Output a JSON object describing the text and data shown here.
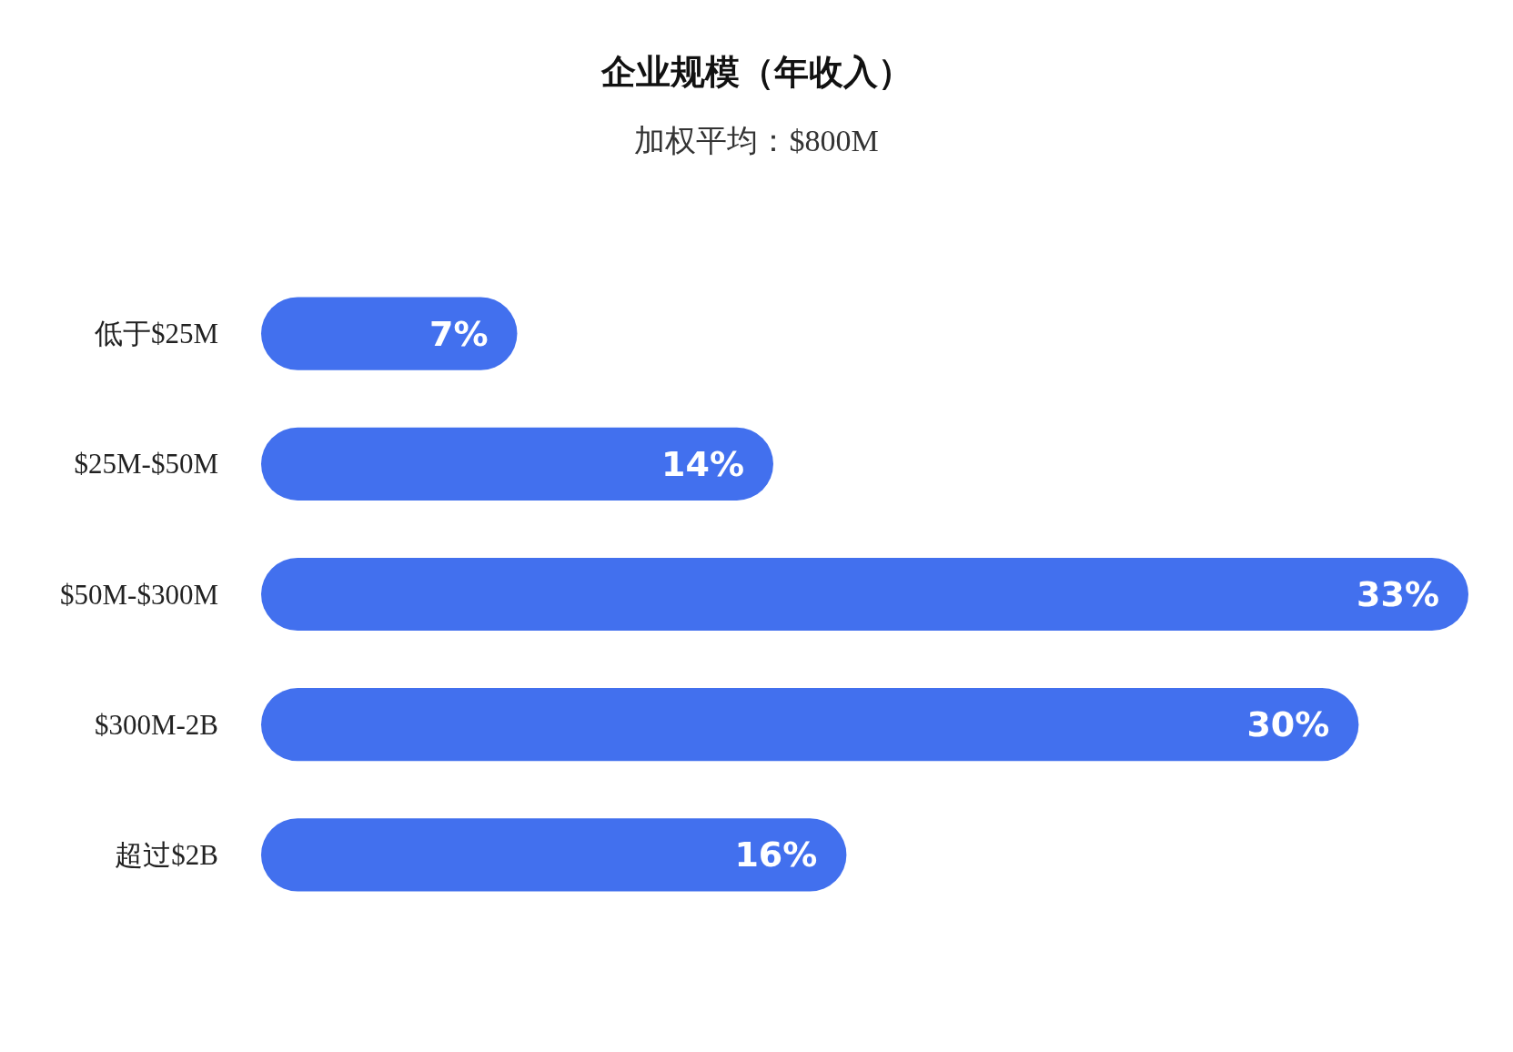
{
  "chart_data": {
    "type": "bar",
    "orientation": "horizontal",
    "title": "企业规模（年收入）",
    "subtitle": "加权平均：$800M",
    "categories": [
      "低于$25M",
      "$25M-$50M",
      "$50M-$300M",
      "$300M-2B",
      "超过$2B"
    ],
    "values": [
      7,
      14,
      33,
      30,
      16
    ],
    "value_labels": [
      "7%",
      "14%",
      "33%",
      "30%",
      "16%"
    ],
    "color": "#4270ee"
  }
}
